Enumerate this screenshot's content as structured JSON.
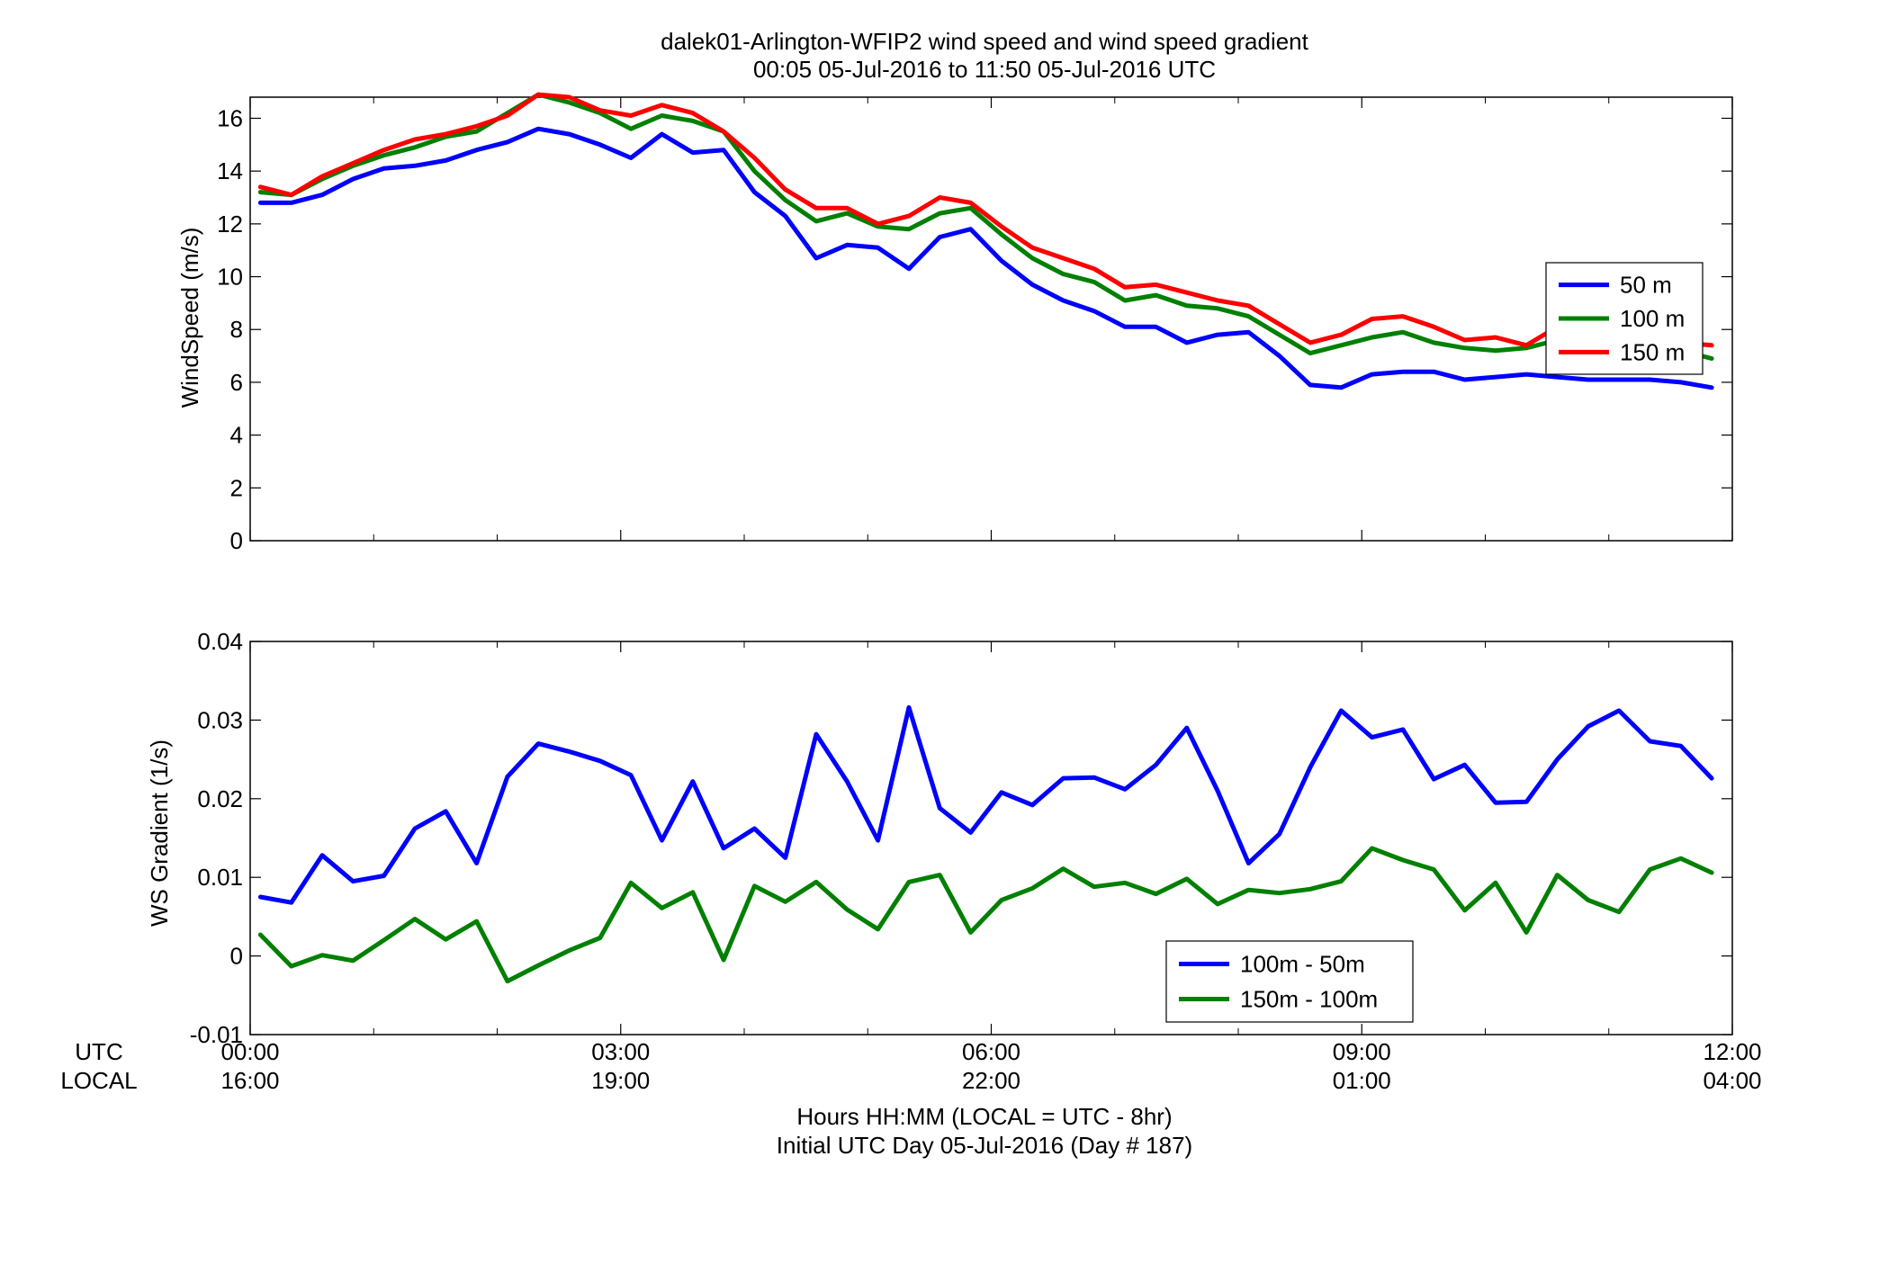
{
  "figure": {
    "title_line1": "dalek01-Arlington-WFIP2  wind speed and wind speed gradient",
    "title_line2": "00:05 05-Jul-2016 to 11:50 05-Jul-2016  UTC",
    "xlabel_line1": "Hours HH:MM  (LOCAL = UTC - 8hr)",
    "xlabel_line2": "Initial UTC Day 05-Jul-2016 (Day # 187)",
    "utc_row_label": "UTC",
    "local_row_label": "LOCAL",
    "x_ticks": [
      {
        "hour": 0,
        "utc": "00:00",
        "local": "16:00"
      },
      {
        "hour": 3,
        "utc": "03:00",
        "local": "19:00"
      },
      {
        "hour": 6,
        "utc": "06:00",
        "local": "22:00"
      },
      {
        "hour": 9,
        "utc": "09:00",
        "local": "01:00"
      },
      {
        "hour": 12,
        "utc": "12:00",
        "local": "04:00"
      }
    ]
  },
  "chart_data": [
    {
      "type": "line",
      "ylabel": "WindSpeed (m/s)",
      "xlim": [
        0,
        12
      ],
      "ylim": [
        0,
        16.8
      ],
      "yticks": [
        "0",
        "2",
        "4",
        "6",
        "8",
        "10",
        "12",
        "14",
        "16"
      ],
      "legend_position": "right",
      "x": [
        0.083,
        0.333,
        0.583,
        0.833,
        1.083,
        1.333,
        1.583,
        1.833,
        2.083,
        2.333,
        2.583,
        2.833,
        3.083,
        3.333,
        3.583,
        3.833,
        4.083,
        4.333,
        4.583,
        4.833,
        5.083,
        5.333,
        5.583,
        5.833,
        6.083,
        6.333,
        6.583,
        6.833,
        7.083,
        7.333,
        7.583,
        7.833,
        8.083,
        8.333,
        8.583,
        8.833,
        9.083,
        9.333,
        9.583,
        9.833,
        10.083,
        10.333,
        10.583,
        10.833,
        11.083,
        11.333,
        11.583,
        11.833
      ],
      "series": [
        {
          "name": "50 m",
          "color": "#0000ff",
          "values": [
            12.8,
            12.8,
            13.1,
            13.7,
            14.1,
            14.2,
            14.4,
            14.8,
            15.1,
            15.6,
            15.4,
            15.0,
            14.5,
            15.4,
            14.7,
            14.8,
            13.2,
            12.3,
            10.7,
            11.2,
            11.1,
            10.3,
            11.5,
            11.8,
            10.6,
            9.7,
            9.1,
            8.7,
            8.1,
            8.1,
            7.5,
            7.8,
            7.9,
            7.0,
            5.9,
            5.8,
            6.3,
            6.4,
            6.4,
            6.1,
            6.2,
            6.3,
            6.2,
            6.1,
            6.1,
            6.1,
            6.0,
            5.8
          ]
        },
        {
          "name": "100 m",
          "color": "#008000",
          "values": [
            13.2,
            13.1,
            13.7,
            14.2,
            14.6,
            14.9,
            15.3,
            15.5,
            16.2,
            16.9,
            16.6,
            16.2,
            15.6,
            16.1,
            15.9,
            15.5,
            14.0,
            12.9,
            12.1,
            12.4,
            11.9,
            11.8,
            12.4,
            12.6,
            11.6,
            10.7,
            10.1,
            9.8,
            9.1,
            9.3,
            8.9,
            8.8,
            8.5,
            7.8,
            7.1,
            7.4,
            7.7,
            7.9,
            7.5,
            7.3,
            7.2,
            7.3,
            7.6,
            7.5,
            7.6,
            7.3,
            7.2,
            6.9
          ]
        },
        {
          "name": "150 m",
          "color": "#ff0000",
          "values": [
            13.4,
            13.1,
            13.8,
            14.3,
            14.8,
            15.2,
            15.4,
            15.7,
            16.1,
            16.9,
            16.8,
            16.3,
            16.1,
            16.5,
            16.2,
            15.5,
            14.5,
            13.3,
            12.6,
            12.6,
            12.0,
            12.3,
            13.0,
            12.8,
            11.9,
            11.1,
            10.7,
            10.3,
            9.6,
            9.7,
            9.4,
            9.1,
            8.9,
            8.2,
            7.5,
            7.8,
            8.4,
            8.5,
            8.1,
            7.6,
            7.7,
            7.4,
            8.1,
            7.9,
            7.8,
            7.6,
            7.5,
            7.4
          ]
        }
      ]
    },
    {
      "type": "line",
      "ylabel": "WS Gradient (1/s)",
      "xlim": [
        0,
        12
      ],
      "ylim": [
        -0.01,
        0.04
      ],
      "yticks": [
        "-0.01",
        "0",
        "0.01",
        "0.02",
        "0.03",
        "0.04"
      ],
      "legend_position": "bottom-right",
      "x": [
        0.083,
        0.333,
        0.583,
        0.833,
        1.083,
        1.333,
        1.583,
        1.833,
        2.083,
        2.333,
        2.583,
        2.833,
        3.083,
        3.333,
        3.583,
        3.833,
        4.083,
        4.333,
        4.583,
        4.833,
        5.083,
        5.333,
        5.583,
        5.833,
        6.083,
        6.333,
        6.583,
        6.833,
        7.083,
        7.333,
        7.583,
        7.833,
        8.083,
        8.333,
        8.583,
        8.833,
        9.083,
        9.333,
        9.583,
        9.833,
        10.083,
        10.333,
        10.583,
        10.833,
        11.083,
        11.333,
        11.583,
        11.833
      ],
      "series": [
        {
          "name": "100m - 50m",
          "color": "#0000ff",
          "values": [
            0.0075,
            0.0068,
            0.0128,
            0.0095,
            0.0102,
            0.0162,
            0.0184,
            0.0118,
            0.0228,
            0.027,
            0.026,
            0.0248,
            0.023,
            0.0147,
            0.0222,
            0.0137,
            0.0162,
            0.0125,
            0.0282,
            0.0222,
            0.0147,
            0.0316,
            0.0188,
            0.0157,
            0.0208,
            0.0192,
            0.0226,
            0.0227,
            0.0212,
            0.0243,
            0.029,
            0.021,
            0.0118,
            0.0155,
            0.024,
            0.0312,
            0.0278,
            0.0288,
            0.0225,
            0.0243,
            0.0195,
            0.0196,
            0.025,
            0.0292,
            0.0312,
            0.0273,
            0.0267,
            0.0226
          ]
        },
        {
          "name": "150m - 100m",
          "color": "#008000",
          "values": [
            0.0027,
            -0.0013,
            0.0001,
            -0.0006,
            0.002,
            0.0047,
            0.0021,
            0.0044,
            -0.0032,
            -0.0012,
            0.0007,
            0.0023,
            0.0093,
            0.0061,
            0.0081,
            -0.0005,
            0.0089,
            0.0069,
            0.0094,
            0.0059,
            0.0034,
            0.0094,
            0.0103,
            0.003,
            0.0071,
            0.0086,
            0.0111,
            0.0088,
            0.0093,
            0.0079,
            0.0098,
            0.0066,
            0.0084,
            0.008,
            0.0085,
            0.0095,
            0.0137,
            0.0122,
            0.011,
            0.0058,
            0.0093,
            0.003,
            0.0103,
            0.0071,
            0.0056,
            0.011,
            0.0124,
            0.0106
          ]
        }
      ]
    }
  ]
}
